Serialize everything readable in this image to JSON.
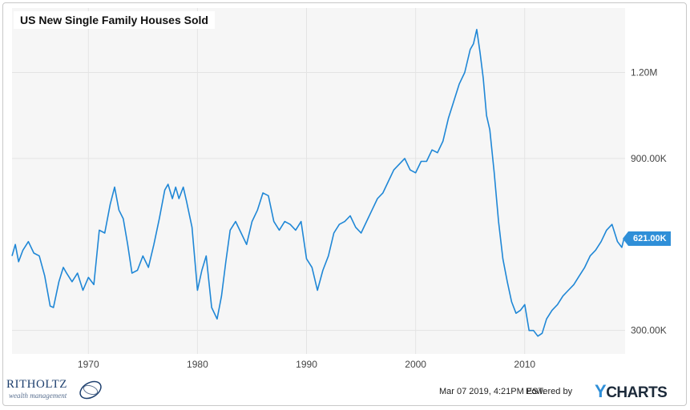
{
  "title": "US New Single Family Houses Sold",
  "last_value_label": "621.00K",
  "footer": {
    "timestamp": "Mar 07 2019, 4:21PM EST.",
    "powered_by": "Powered by",
    "brand_y": "Y",
    "brand_rest": "CHARTS"
  },
  "watermark": {
    "name": "RITHOLTZ",
    "sub": "wealth management"
  },
  "colors": {
    "line": "#1f87d6",
    "plot_bg": "#f6f6f6",
    "badge": "#2f8fd8"
  },
  "chart_data": {
    "type": "line",
    "title": "US New Single Family Houses Sold",
    "x_ticks": [
      "1970",
      "1980",
      "1990",
      "2000",
      "2010"
    ],
    "y_ticks": [
      {
        "value": 300000,
        "label": "300.00K"
      },
      {
        "value": 900000,
        "label": "900.00K"
      },
      {
        "value": 1200000,
        "label": "1.20M"
      }
    ],
    "xlim": [
      1963.0,
      2019.2
    ],
    "ylim": [
      218000,
      1425000
    ],
    "grid": true,
    "last_value": 621000,
    "series": [
      {
        "x": [
          1963.0,
          1963.3,
          1963.6,
          1964.0,
          1964.5,
          1965.0,
          1965.5,
          1966.0,
          1966.5,
          1966.8,
          1967.3,
          1967.7,
          1968.0,
          1968.5,
          1969.0,
          1969.5,
          1970.0,
          1970.5,
          1971.0,
          1971.5,
          1972.0,
          1972.4,
          1972.8,
          1973.2,
          1973.6,
          1974.0,
          1974.5,
          1975.0,
          1975.5,
          1976.0,
          1976.5,
          1977.0,
          1977.3,
          1977.7,
          1978.0,
          1978.3,
          1978.7,
          1979.0,
          1979.5,
          1980.0,
          1980.4,
          1980.8,
          1981.3,
          1981.8,
          1982.2,
          1982.6,
          1983.0,
          1983.5,
          1984.0,
          1984.5,
          1985.0,
          1985.5,
          1986.0,
          1986.5,
          1987.0,
          1987.5,
          1988.0,
          1988.5,
          1989.0,
          1989.5,
          1990.0,
          1990.5,
          1991.0,
          1991.5,
          1992.0,
          1992.5,
          1993.0,
          1993.5,
          1994.0,
          1994.5,
          1995.0,
          1995.5,
          1996.0,
          1996.5,
          1997.0,
          1997.5,
          1998.0,
          1998.5,
          1999.0,
          1999.5,
          2000.0,
          2000.5,
          2001.0,
          2001.5,
          2002.0,
          2002.5,
          2003.0,
          2003.5,
          2004.0,
          2004.5,
          2005.0,
          2005.3,
          2005.6,
          2005.9,
          2006.2,
          2006.5,
          2006.8,
          2007.2,
          2007.6,
          2008.0,
          2008.4,
          2008.8,
          2009.2,
          2009.6,
          2010.0,
          2010.4,
          2010.8,
          2011.2,
          2011.6,
          2012.0,
          2012.5,
          2013.0,
          2013.5,
          2014.0,
          2014.5,
          2015.0,
          2015.5,
          2016.0,
          2016.5,
          2017.0,
          2017.5,
          2018.0,
          2018.5,
          2018.9,
          2019.1
        ],
        "values": [
          560000,
          600000,
          540000,
          580000,
          610000,
          570000,
          560000,
          490000,
          385000,
          380000,
          470000,
          520000,
          500000,
          470000,
          500000,
          440000,
          485000,
          460000,
          650000,
          640000,
          740000,
          800000,
          720000,
          690000,
          600000,
          500000,
          510000,
          560000,
          520000,
          600000,
          690000,
          790000,
          810000,
          760000,
          800000,
          760000,
          800000,
          750000,
          660000,
          440000,
          510000,
          560000,
          380000,
          340000,
          420000,
          540000,
          650000,
          680000,
          640000,
          600000,
          680000,
          720000,
          780000,
          770000,
          680000,
          650000,
          680000,
          670000,
          650000,
          680000,
          550000,
          520000,
          440000,
          510000,
          560000,
          640000,
          670000,
          680000,
          700000,
          660000,
          640000,
          680000,
          720000,
          760000,
          780000,
          820000,
          860000,
          880000,
          900000,
          860000,
          850000,
          890000,
          890000,
          930000,
          920000,
          960000,
          1040000,
          1100000,
          1160000,
          1200000,
          1280000,
          1300000,
          1350000,
          1270000,
          1180000,
          1050000,
          1000000,
          850000,
          680000,
          550000,
          470000,
          400000,
          360000,
          370000,
          390000,
          300000,
          300000,
          280000,
          290000,
          340000,
          370000,
          390000,
          420000,
          440000,
          460000,
          490000,
          520000,
          560000,
          580000,
          610000,
          650000,
          670000,
          610000,
          590000,
          621000
        ]
      }
    ]
  }
}
